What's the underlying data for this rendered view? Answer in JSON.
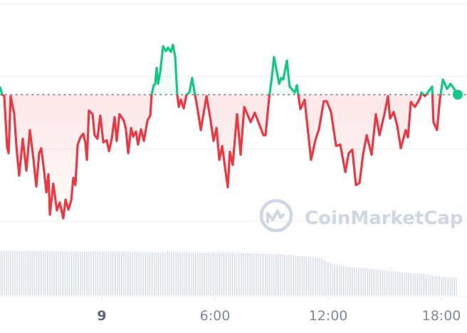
{
  "chart_data": {
    "type": "line",
    "title": "",
    "xlabel": "",
    "ylabel": "",
    "x_unit": "hours",
    "xlim": [
      -5.4,
      18.85
    ],
    "ylim": [
      0,
      3
    ],
    "grid": true,
    "x_ticks": [
      {
        "value": 0,
        "label": "9"
      },
      {
        "value": 6,
        "label": "6:00"
      },
      {
        "value": 12,
        "label": "12:00"
      },
      {
        "value": 18,
        "label": "18:00"
      }
    ],
    "baseline": 1.75,
    "colors": {
      "up": "#16c784",
      "down": "#ea3943",
      "grid": "#f1f1f3",
      "volume": "#cfd6e4",
      "baseline": "#8f98a8"
    },
    "watermark": "CoinMarketCap",
    "price_series": [
      [
        -5.4,
        1.86
      ],
      [
        -5.28,
        1.75
      ],
      [
        -5.17,
        1.73
      ],
      [
        -5.02,
        1.02
      ],
      [
        -4.94,
        0.94
      ],
      [
        -4.83,
        1.73
      ],
      [
        -4.64,
        1.48
      ],
      [
        -4.53,
        1.04
      ],
      [
        -4.38,
        0.63
      ],
      [
        -4.19,
        1.14
      ],
      [
        -4.0,
        0.7
      ],
      [
        -3.81,
        1.26
      ],
      [
        -3.62,
        0.85
      ],
      [
        -3.47,
        0.48
      ],
      [
        -3.32,
        0.94
      ],
      [
        -3.21,
        1.01
      ],
      [
        -3.06,
        0.7
      ],
      [
        -2.94,
        0.4
      ],
      [
        -2.83,
        0.65
      ],
      [
        -2.75,
        0.09
      ],
      [
        -2.57,
        0.52
      ],
      [
        -2.38,
        0.15
      ],
      [
        -2.23,
        0.26
      ],
      [
        -2.04,
        0.04
      ],
      [
        -1.92,
        0.3
      ],
      [
        -1.77,
        0.16
      ],
      [
        -1.62,
        0.29
      ],
      [
        -1.51,
        0.6
      ],
      [
        -1.4,
        0.5
      ],
      [
        -1.28,
        1.06
      ],
      [
        -1.13,
        1.16
      ],
      [
        -0.98,
        1.21
      ],
      [
        -0.87,
        1.09
      ],
      [
        -0.79,
        0.85
      ],
      [
        -0.68,
        1.53
      ],
      [
        -0.49,
        1.48
      ],
      [
        -0.38,
        1.19
      ],
      [
        -0.23,
        1.14
      ],
      [
        -0.08,
        1.46
      ],
      [
        0.08,
        1.09
      ],
      [
        0.26,
        1.12
      ],
      [
        0.38,
        0.97
      ],
      [
        0.53,
        1.14
      ],
      [
        0.68,
        1.44
      ],
      [
        0.79,
        1.11
      ],
      [
        0.94,
        1.48
      ],
      [
        1.17,
        1.39
      ],
      [
        1.28,
        1.27
      ],
      [
        1.4,
        0.94
      ],
      [
        1.55,
        1.29
      ],
      [
        1.66,
        1.17
      ],
      [
        1.81,
        1.24
      ],
      [
        1.92,
        1.06
      ],
      [
        2.08,
        1.27
      ],
      [
        2.23,
        1.11
      ],
      [
        2.42,
        1.39
      ],
      [
        2.57,
        1.46
      ],
      [
        2.64,
        1.75
      ],
      [
        2.75,
        1.88
      ],
      [
        2.83,
        1.9
      ],
      [
        2.91,
        2.12
      ],
      [
        2.98,
        1.9
      ],
      [
        3.09,
        2.05
      ],
      [
        3.25,
        2.42
      ],
      [
        3.4,
        2.35
      ],
      [
        3.51,
        2.4
      ],
      [
        3.66,
        2.34
      ],
      [
        3.77,
        2.44
      ],
      [
        3.89,
        2.27
      ],
      [
        4.0,
        1.75
      ],
      [
        4.08,
        1.58
      ],
      [
        4.19,
        1.68
      ],
      [
        4.34,
        1.56
      ],
      [
        4.49,
        1.75
      ],
      [
        4.64,
        1.78
      ],
      [
        4.79,
        1.98
      ],
      [
        4.94,
        1.75
      ],
      [
        5.09,
        1.53
      ],
      [
        5.25,
        1.26
      ],
      [
        5.55,
        1.73
      ],
      [
        5.77,
        1.39
      ],
      [
        5.92,
        1.11
      ],
      [
        6.08,
        1.29
      ],
      [
        6.23,
        0.85
      ],
      [
        6.38,
        1.04
      ],
      [
        6.53,
        0.75
      ],
      [
        6.68,
        0.47
      ],
      [
        6.79,
        0.96
      ],
      [
        6.94,
        0.78
      ],
      [
        7.17,
        1.48
      ],
      [
        7.36,
        0.92
      ],
      [
        7.55,
        1.58
      ],
      [
        7.89,
        1.37
      ],
      [
        8.11,
        1.5
      ],
      [
        8.57,
        1.19
      ],
      [
        8.68,
        1.19
      ],
      [
        8.87,
        1.71
      ],
      [
        9.02,
        2.0
      ],
      [
        9.13,
        2.27
      ],
      [
        9.4,
        1.9
      ],
      [
        9.51,
        1.98
      ],
      [
        9.62,
        1.96
      ],
      [
        9.81,
        2.22
      ],
      [
        9.96,
        1.86
      ],
      [
        10.23,
        1.78
      ],
      [
        10.34,
        1.88
      ],
      [
        10.53,
        1.55
      ],
      [
        10.75,
        1.68
      ],
      [
        11.09,
        0.85
      ],
      [
        11.32,
        1.12
      ],
      [
        11.51,
        1.27
      ],
      [
        11.77,
        1.66
      ],
      [
        11.92,
        1.66
      ],
      [
        12.15,
        1.51
      ],
      [
        12.42,
        1.04
      ],
      [
        12.64,
        1.06
      ],
      [
        12.79,
        0.85
      ],
      [
        12.91,
        0.68
      ],
      [
        13.09,
        0.94
      ],
      [
        13.28,
        0.99
      ],
      [
        13.47,
        0.5
      ],
      [
        13.66,
        0.53
      ],
      [
        13.85,
        0.92
      ],
      [
        14.04,
        1.19
      ],
      [
        14.3,
        0.92
      ],
      [
        14.53,
        1.48
      ],
      [
        14.72,
        1.19
      ],
      [
        14.98,
        1.48
      ],
      [
        15.17,
        1.73
      ],
      [
        15.28,
        1.42
      ],
      [
        15.47,
        1.51
      ],
      [
        15.66,
        1.32
      ],
      [
        15.85,
        1.01
      ],
      [
        16.11,
        1.26
      ],
      [
        16.23,
        1.16
      ],
      [
        16.38,
        1.65
      ],
      [
        16.6,
        1.58
      ],
      [
        16.87,
        1.7
      ],
      [
        16.94,
        1.78
      ],
      [
        17.13,
        1.73
      ],
      [
        17.51,
        1.86
      ],
      [
        17.58,
        1.37
      ],
      [
        17.77,
        1.26
      ],
      [
        17.92,
        1.68
      ],
      [
        18.08,
        1.96
      ],
      [
        18.3,
        1.83
      ],
      [
        18.49,
        1.9
      ],
      [
        18.68,
        1.83
      ],
      [
        18.83,
        1.75
      ]
    ],
    "volume_relative": [
      [
        -5.4,
        1.0
      ],
      [
        -5,
        1.0
      ],
      [
        -4,
        1.0
      ],
      [
        -3,
        1.0
      ],
      [
        -2,
        0.99
      ],
      [
        -1,
        0.99
      ],
      [
        0,
        0.99
      ],
      [
        1,
        0.99
      ],
      [
        2,
        0.98
      ],
      [
        3,
        0.98
      ],
      [
        4,
        0.98
      ],
      [
        5,
        0.97
      ],
      [
        6,
        0.97
      ],
      [
        7,
        0.96
      ],
      [
        8,
        0.95
      ],
      [
        9,
        0.94
      ],
      [
        10,
        0.91
      ],
      [
        11,
        0.87
      ],
      [
        11.6,
        0.84
      ],
      [
        12,
        0.74
      ],
      [
        13,
        0.64
      ],
      [
        14,
        0.61
      ],
      [
        15,
        0.56
      ],
      [
        16,
        0.52
      ],
      [
        17,
        0.48
      ],
      [
        18,
        0.42
      ],
      [
        18.8,
        0.39
      ]
    ]
  }
}
